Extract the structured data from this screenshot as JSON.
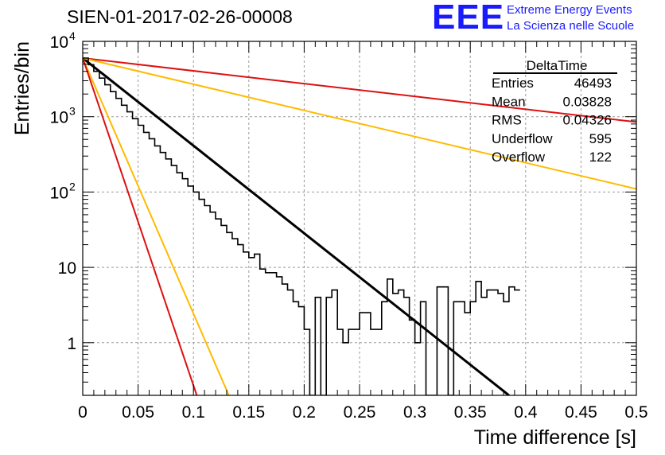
{
  "header": {
    "title": "SIEN-01-2017-02-26-00008",
    "logo": "EEE",
    "logo_line1": "Extreme Energy Events",
    "logo_line2": "La Scienza nelle Scuole"
  },
  "chart_data": {
    "type": "line",
    "title": "SIEN-01-2017-02-26-00008",
    "xlabel": "Time difference [s]",
    "ylabel": "Entries/bin",
    "xlim": [
      0,
      0.5
    ],
    "ylim": [
      0.2,
      10000
    ],
    "y_scale": "log",
    "grid": true,
    "x_ticks": [
      "0",
      "0.05",
      "0.1",
      "0.15",
      "0.2",
      "0.25",
      "0.3",
      "0.35",
      "0.4",
      "0.45",
      "0.5"
    ],
    "y_ticks": [
      {
        "value": 1,
        "label": "1"
      },
      {
        "value": 10,
        "label": "10"
      },
      {
        "value": 100,
        "label": "10",
        "exp": "2"
      },
      {
        "value": 1000,
        "label": "10",
        "exp": "3"
      },
      {
        "value": 10000,
        "label": "10",
        "exp": "4"
      }
    ],
    "stats_box": {
      "name": "DeltaTime",
      "rows": [
        {
          "label": "Entries",
          "value": "46493"
        },
        {
          "label": "Mean",
          "value": "0.03828"
        },
        {
          "label": "RMS",
          "value": "0.04326"
        },
        {
          "label": "Underflow",
          "value": "595"
        },
        {
          "label": "Overflow",
          "value": "122"
        }
      ],
      "placement": "top-right"
    },
    "histogram": {
      "color": "#000000",
      "bin_width": 0.005,
      "x_start": 0.0,
      "values": [
        6000,
        4900,
        4000,
        3250,
        2650,
        2150,
        1750,
        1420,
        1160,
        940,
        770,
        620,
        510,
        410,
        335,
        275,
        225,
        180,
        150,
        120,
        100,
        80,
        66,
        54,
        44,
        36,
        29,
        24,
        20,
        16,
        13.5,
        15,
        9.5,
        8.5,
        8.5,
        7.5,
        6,
        5,
        3.5,
        3,
        1.5,
        0.1,
        4,
        0.1,
        4,
        5,
        1.5,
        1,
        1.5,
        1.5,
        2.5,
        2.5,
        1.5,
        1.5,
        3.5,
        7,
        4.5,
        5,
        4,
        2,
        1,
        3.5,
        0.1,
        0.1,
        5.5,
        5.5,
        0.1,
        3.5,
        3.5,
        2.5,
        3.5,
        6.5,
        4,
        5,
        5,
        4.5,
        3.5,
        5.5,
        5
      ]
    },
    "series": [
      {
        "color": "#000000",
        "x": [
          0,
          0.385
        ],
        "y": [
          6000,
          0.2
        ]
      },
      {
        "color": "#dd1111",
        "x": [
          0,
          0.5
        ],
        "y": [
          6000,
          850
        ]
      },
      {
        "color": "#ffbb00",
        "x": [
          0,
          0.5
        ],
        "y": [
          6000,
          110
        ]
      },
      {
        "color": "#ffbb00",
        "x": [
          0,
          0.132
        ],
        "y": [
          6000,
          0.2
        ]
      },
      {
        "color": "#dd1111",
        "x": [
          0,
          0.103
        ],
        "y": [
          6000,
          0.2
        ]
      }
    ]
  }
}
